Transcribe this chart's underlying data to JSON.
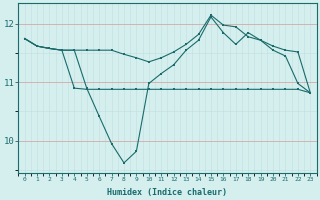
{
  "xlabel": "Humidex (Indice chaleur)",
  "bg_color": "#d5efef",
  "line_color": "#1a6b6b",
  "xlim": [
    -0.5,
    23.5
  ],
  "ylim": [
    9.45,
    12.35
  ],
  "yticks": [
    10,
    11,
    12
  ],
  "xticks": [
    0,
    1,
    2,
    3,
    4,
    5,
    6,
    7,
    8,
    9,
    10,
    11,
    12,
    13,
    14,
    15,
    16,
    17,
    18,
    19,
    20,
    21,
    22,
    23
  ],
  "line1": [
    11.75,
    11.62,
    11.58,
    11.55,
    10.9,
    10.88,
    10.88,
    10.88,
    10.88,
    10.88,
    10.88,
    10.88,
    10.88,
    10.88,
    10.88,
    10.88,
    10.88,
    10.88,
    10.88,
    10.88,
    10.88,
    10.88,
    10.88,
    10.82
  ],
  "line2": [
    11.75,
    11.62,
    11.58,
    11.55,
    11.55,
    10.9,
    10.42,
    9.95,
    9.62,
    9.82,
    10.98,
    11.15,
    11.3,
    11.55,
    11.72,
    12.12,
    11.85,
    11.65,
    11.85,
    11.72,
    11.55,
    11.45,
    10.98,
    10.82
  ],
  "line3": [
    11.75,
    11.62,
    11.58,
    11.55,
    11.55,
    11.55,
    11.55,
    11.55,
    11.48,
    11.42,
    11.35,
    11.42,
    11.52,
    11.65,
    11.82,
    12.15,
    11.98,
    11.95,
    11.78,
    11.72,
    11.62,
    11.55,
    11.52,
    10.82
  ]
}
